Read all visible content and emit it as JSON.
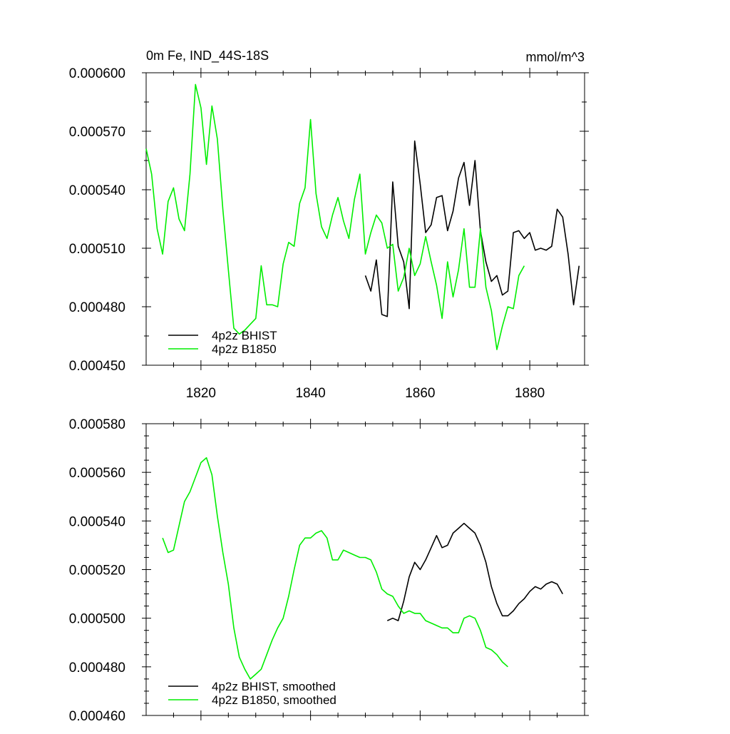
{
  "figure": {
    "title_left": "0m Fe, IND_44S-18S",
    "title_right": "mmol/m^3"
  },
  "colors": {
    "bhist": "#000000",
    "b1850": "#00ee00",
    "axis": "#000000"
  },
  "chart_data": [
    {
      "type": "line",
      "title": "0m Fe, IND_44S-18S",
      "units": "mmol/m^3",
      "xlim": [
        1810,
        1890
      ],
      "ylim": [
        0.00045,
        0.0006
      ],
      "yticks": [
        "0.000450",
        "0.000480",
        "0.000510",
        "0.000540",
        "0.000570",
        "0.000600"
      ],
      "xticks": [
        "1820",
        "1840",
        "1860",
        "1880"
      ],
      "legend": [
        "4p2z BHIST",
        "4p2z B1850"
      ],
      "legend_position": "bottom-left",
      "series": [
        {
          "name": "4p2z BHIST",
          "color": "#000000",
          "x": [
            1850,
            1851,
            1852,
            1853,
            1854,
            1855,
            1856,
            1857,
            1858,
            1859,
            1860,
            1861,
            1862,
            1863,
            1864,
            1865,
            1866,
            1867,
            1868,
            1869,
            1870,
            1871,
            1872,
            1873,
            1874,
            1875,
            1876,
            1877,
            1878,
            1879,
            1880,
            1881,
            1882,
            1883,
            1884,
            1885,
            1886,
            1887,
            1888,
            1889
          ],
          "values": [
            0.000496,
            0.000488,
            0.000504,
            0.000476,
            0.000475,
            0.000544,
            0.000511,
            0.000503,
            0.000479,
            0.000565,
            0.000543,
            0.000518,
            0.000522,
            0.000536,
            0.000537,
            0.000519,
            0.000529,
            0.000546,
            0.000554,
            0.000532,
            0.000555,
            0.000519,
            0.000503,
            0.000493,
            0.000496,
            0.000486,
            0.000488,
            0.000518,
            0.000519,
            0.000515,
            0.000518,
            0.000509,
            0.00051,
            0.000509,
            0.000511,
            0.00053,
            0.000526,
            0.000507,
            0.000481,
            0.000501
          ]
        },
        {
          "name": "4p2z B1850",
          "color": "#00ee00",
          "x": [
            1810,
            1811,
            1812,
            1813,
            1814,
            1815,
            1816,
            1817,
            1818,
            1819,
            1820,
            1821,
            1822,
            1823,
            1824,
            1825,
            1826,
            1827,
            1828,
            1829,
            1830,
            1831,
            1832,
            1833,
            1834,
            1835,
            1836,
            1837,
            1838,
            1839,
            1840,
            1841,
            1842,
            1843,
            1844,
            1845,
            1846,
            1847,
            1848,
            1849,
            1850,
            1851,
            1852,
            1853,
            1854,
            1855,
            1856,
            1857,
            1858,
            1859,
            1860,
            1861,
            1862,
            1863,
            1864,
            1865,
            1866,
            1867,
            1868,
            1869,
            1870,
            1871,
            1872,
            1873,
            1874,
            1875,
            1876,
            1877,
            1878,
            1879
          ],
          "values": [
            0.000561,
            0.000548,
            0.00052,
            0.000507,
            0.000534,
            0.000541,
            0.000525,
            0.000519,
            0.000548,
            0.000594,
            0.000582,
            0.000553,
            0.000583,
            0.000566,
            0.00053,
            0.000499,
            0.000469,
            0.000466,
            0.000468,
            0.000471,
            0.000474,
            0.000501,
            0.000481,
            0.000481,
            0.00048,
            0.000502,
            0.000513,
            0.000511,
            0.000533,
            0.000541,
            0.000576,
            0.000538,
            0.000521,
            0.000515,
            0.000527,
            0.000536,
            0.000524,
            0.000515,
            0.000535,
            0.000548,
            0.000507,
            0.000518,
            0.000527,
            0.000523,
            0.00051,
            0.000512,
            0.000488,
            0.000495,
            0.00051,
            0.000496,
            0.000502,
            0.000516,
            0.000503,
            0.000491,
            0.000474,
            0.000503,
            0.000485,
            0.000499,
            0.00052,
            0.00049,
            0.00049,
            0.00052,
            0.00049,
            0.000478,
            0.000458,
            0.00047,
            0.00048,
            0.000479,
            0.000496,
            0.000501
          ]
        }
      ]
    },
    {
      "type": "line",
      "xlim": [
        1810,
        1890
      ],
      "ylim": [
        0.00046,
        0.00058
      ],
      "yticks": [
        "0.000460",
        "0.000480",
        "0.000500",
        "0.000520",
        "0.000540",
        "0.000560",
        "0.000580"
      ],
      "legend": [
        "4p2z BHIST, smoothed",
        "4p2z B1850, smoothed"
      ],
      "legend_position": "bottom-left",
      "series": [
        {
          "name": "4p2z BHIST, smoothed",
          "color": "#000000",
          "x": [
            1854,
            1855,
            1856,
            1857,
            1858,
            1859,
            1860,
            1861,
            1862,
            1863,
            1864,
            1865,
            1866,
            1867,
            1868,
            1869,
            1870,
            1871,
            1872,
            1873,
            1874,
            1875,
            1876,
            1877,
            1878,
            1879,
            1880,
            1881,
            1882,
            1883,
            1884,
            1885,
            1886
          ],
          "values": [
            0.000499,
            0.0005,
            0.000499,
            0.000507,
            0.000517,
            0.000523,
            0.00052,
            0.000524,
            0.000529,
            0.000534,
            0.000529,
            0.00053,
            0.000535,
            0.000537,
            0.000539,
            0.000537,
            0.000535,
            0.00053,
            0.000523,
            0.000513,
            0.000506,
            0.000501,
            0.000501,
            0.000503,
            0.000506,
            0.000508,
            0.000511,
            0.000513,
            0.000512,
            0.000514,
            0.000515,
            0.000514,
            0.00051
          ]
        },
        {
          "name": "4p2z B1850, smoothed",
          "color": "#00ee00",
          "x": [
            1813,
            1814,
            1815,
            1816,
            1817,
            1818,
            1819,
            1820,
            1821,
            1822,
            1823,
            1824,
            1825,
            1826,
            1827,
            1828,
            1829,
            1830,
            1831,
            1832,
            1833,
            1834,
            1835,
            1836,
            1837,
            1838,
            1839,
            1840,
            1841,
            1842,
            1843,
            1844,
            1845,
            1846,
            1847,
            1848,
            1849,
            1850,
            1851,
            1852,
            1853,
            1854,
            1855,
            1856,
            1857,
            1858,
            1859,
            1860,
            1861,
            1862,
            1863,
            1864,
            1865,
            1866,
            1867,
            1868,
            1869,
            1870,
            1871,
            1872,
            1873,
            1874,
            1875,
            1876
          ],
          "values": [
            0.000533,
            0.000527,
            0.000528,
            0.000538,
            0.000548,
            0.000552,
            0.000558,
            0.000564,
            0.000566,
            0.000559,
            0.000542,
            0.000527,
            0.000514,
            0.000496,
            0.000484,
            0.000479,
            0.000475,
            0.000477,
            0.000479,
            0.000485,
            0.000491,
            0.000496,
            0.0005,
            0.000509,
            0.00052,
            0.00053,
            0.000533,
            0.000533,
            0.000535,
            0.000536,
            0.000533,
            0.000524,
            0.000524,
            0.000528,
            0.000527,
            0.000526,
            0.000525,
            0.000525,
            0.000524,
            0.000519,
            0.000512,
            0.00051,
            0.000509,
            0.000505,
            0.000502,
            0.000503,
            0.000502,
            0.000502,
            0.000499,
            0.000498,
            0.000497,
            0.000496,
            0.000496,
            0.000494,
            0.000494,
            0.0005,
            0.000501,
            0.0005,
            0.000495,
            0.000488,
            0.000487,
            0.000485,
            0.000482,
            0.00048
          ]
        }
      ]
    }
  ]
}
